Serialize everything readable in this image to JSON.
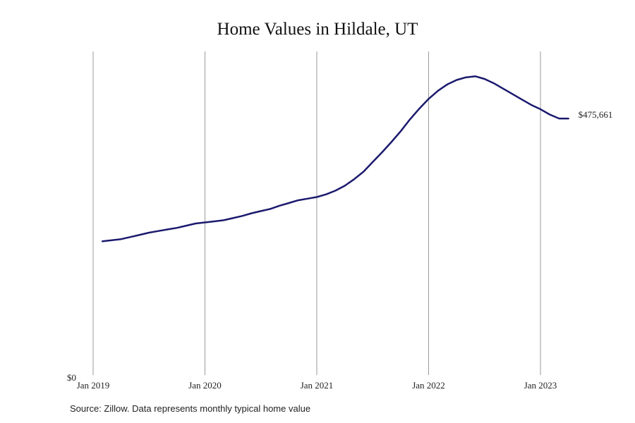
{
  "chart_data": {
    "type": "line",
    "title": "Home Values in Hildale, UT",
    "xlabel": "",
    "ylabel": "",
    "y_tick_label": "$0",
    "x_ticks": [
      "Jan 2019",
      "Jan 2020",
      "Jan 2021",
      "Jan 2022",
      "Jan 2023"
    ],
    "ylim": [
      0,
      600000
    ],
    "grid": "vertical",
    "line_color": "#1b1a6e",
    "end_label": "$475,661",
    "series": [
      {
        "values": [
          [
            2019.083,
            248000
          ],
          [
            2019.167,
            250000
          ],
          [
            2019.25,
            252000
          ],
          [
            2019.333,
            256000
          ],
          [
            2019.417,
            260000
          ],
          [
            2019.5,
            264000
          ],
          [
            2019.583,
            267000
          ],
          [
            2019.667,
            270000
          ],
          [
            2019.75,
            273000
          ],
          [
            2019.833,
            277000
          ],
          [
            2019.917,
            281000
          ],
          [
            2020.0,
            283000
          ],
          [
            2020.083,
            285000
          ],
          [
            2020.167,
            287000
          ],
          [
            2020.25,
            291000
          ],
          [
            2020.333,
            295000
          ],
          [
            2020.417,
            300000
          ],
          [
            2020.5,
            304000
          ],
          [
            2020.583,
            308000
          ],
          [
            2020.667,
            314000
          ],
          [
            2020.75,
            319000
          ],
          [
            2020.833,
            324000
          ],
          [
            2020.917,
            327000
          ],
          [
            2021.0,
            330000
          ],
          [
            2021.083,
            335000
          ],
          [
            2021.167,
            342000
          ],
          [
            2021.25,
            351000
          ],
          [
            2021.333,
            363000
          ],
          [
            2021.417,
            377000
          ],
          [
            2021.5,
            395000
          ],
          [
            2021.583,
            413000
          ],
          [
            2021.667,
            432000
          ],
          [
            2021.75,
            452000
          ],
          [
            2021.833,
            474000
          ],
          [
            2021.917,
            494000
          ],
          [
            2022.0,
            512000
          ],
          [
            2022.083,
            527000
          ],
          [
            2022.167,
            539000
          ],
          [
            2022.25,
            547000
          ],
          [
            2022.333,
            552000
          ],
          [
            2022.417,
            554000
          ],
          [
            2022.5,
            549000
          ],
          [
            2022.583,
            541000
          ],
          [
            2022.667,
            531000
          ],
          [
            2022.75,
            521000
          ],
          [
            2022.833,
            511000
          ],
          [
            2022.917,
            501000
          ],
          [
            2023.0,
            493000
          ],
          [
            2023.083,
            483000
          ],
          [
            2023.167,
            475661
          ],
          [
            2023.25,
            475661
          ]
        ]
      }
    ],
    "source_note": "Source: Zillow. Data represents monthly typical home value"
  }
}
